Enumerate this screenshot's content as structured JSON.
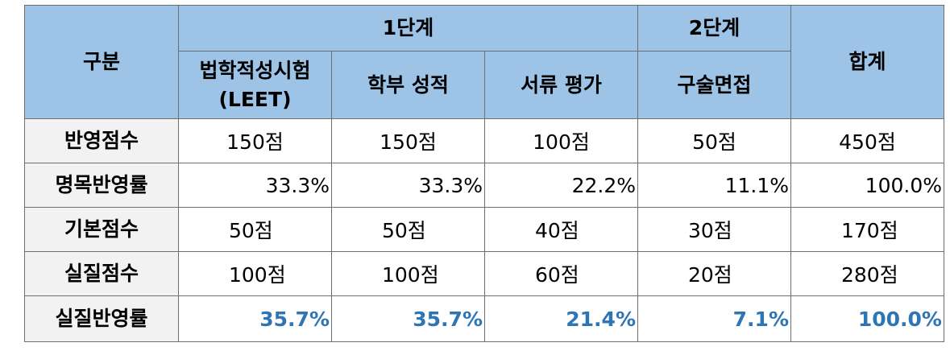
{
  "header": {
    "category": "구분",
    "stage1": "1단계",
    "stage2": "2단계",
    "total": "합계",
    "leet_line1": "법학적성시험",
    "leet_line2": "(LEET)",
    "undergrad": "학부 성적",
    "documents": "서류 평가",
    "interview": "구술면접"
  },
  "rows": [
    {
      "label": "반영점수",
      "cells": [
        "150점",
        "150점",
        "100점",
        "50점",
        "450점"
      ]
    },
    {
      "label": "명목반영률",
      "cells": [
        "33.3%",
        "33.3%",
        "22.2%",
        "11.1%",
        "100.0%"
      ]
    },
    {
      "label": "기본점수",
      "cells": [
        "50점",
        "50점",
        "40점",
        "30점",
        "170점"
      ]
    },
    {
      "label": "실질점수",
      "cells": [
        "100점",
        "100점",
        "60점",
        "20점",
        "280점"
      ]
    },
    {
      "label": "실질반영률",
      "cells": [
        "35.7%",
        "35.7%",
        "21.4%",
        "7.1%",
        "100.0%"
      ]
    }
  ],
  "colors": {
    "header_bg": "#9dc3e6",
    "rowhead_bg": "#f2f2f2",
    "highlight_text": "#2e75b6"
  }
}
